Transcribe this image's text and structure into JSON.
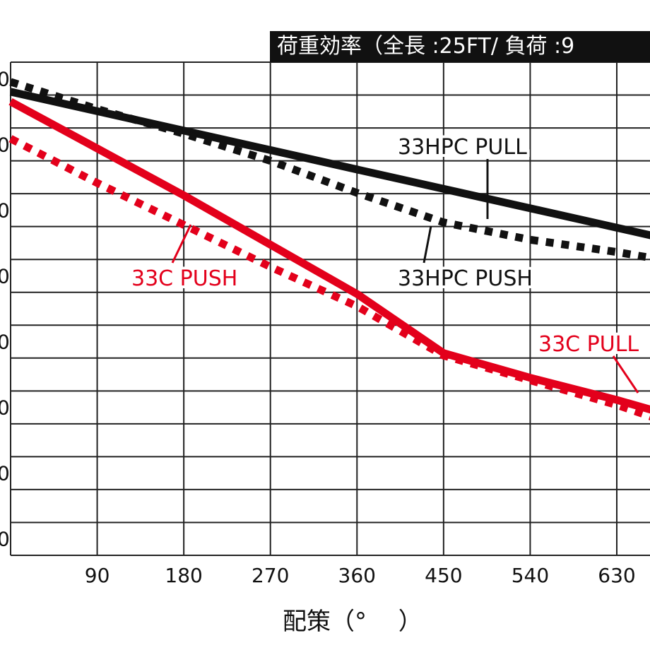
{
  "chart_data": {
    "type": "line",
    "title": "荷重効率（全長 :25FT/ 負荷 :9",
    "xlabel": "配策（°　 ）",
    "ylabel": "",
    "x_ticks": [
      90,
      180,
      270,
      360,
      450,
      540,
      630
    ],
    "y_ticks": [
      "0",
      "0",
      "0",
      "0",
      "0",
      "0",
      "0",
      "0"
    ],
    "xlim": [
      0,
      720
    ],
    "ylim": [
      0,
      10
    ],
    "grid": true,
    "series": [
      {
        "name": "33HPC PULL",
        "color": "#111111",
        "dash": "solid",
        "x": [
          0,
          720
        ],
        "y": [
          9.4,
          6.25
        ]
      },
      {
        "name": "33HPC PUSH",
        "color": "#111111",
        "dash": "dotted",
        "x": [
          0,
          90,
          180,
          270,
          360,
          450,
          540,
          630,
          720
        ],
        "y": [
          9.6,
          9.05,
          8.55,
          8.0,
          7.35,
          6.75,
          6.4,
          6.15,
          5.85
        ]
      },
      {
        "name": "33C PUSH",
        "color": "#e3001b",
        "dash": "dotted",
        "x": [
          0,
          90,
          180,
          270,
          360,
          450,
          540,
          630,
          720
        ],
        "y": [
          8.45,
          7.55,
          6.7,
          5.85,
          5.05,
          4.05,
          3.55,
          3.05,
          2.45
        ]
      },
      {
        "name": "33C PULL",
        "color": "#e3001b",
        "dash": "solid",
        "x": [
          0,
          90,
          180,
          270,
          360,
          450,
          540,
          630,
          720
        ],
        "y": [
          9.2,
          8.25,
          7.3,
          6.3,
          5.3,
          4.1,
          3.6,
          3.15,
          2.65
        ]
      }
    ],
    "annotations": [
      "33HPC PULL",
      "33HPC PUSH",
      "33C PUSH",
      "33C PULL"
    ]
  }
}
